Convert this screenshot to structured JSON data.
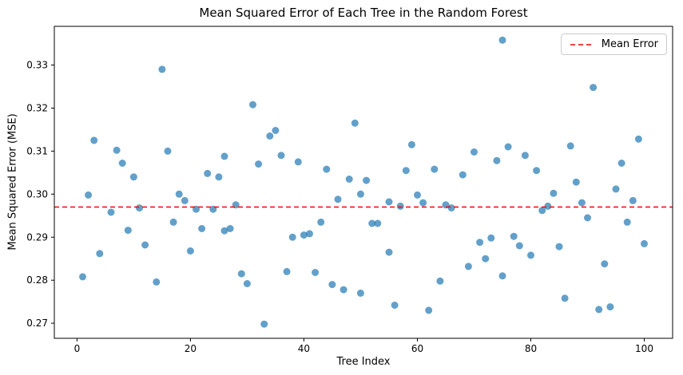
{
  "chart_data": {
    "type": "scatter",
    "title": "Mean Squared Error of Each Tree in the Random Forest",
    "xlabel": "Tree Index",
    "ylabel": "Mean Squared Error (MSE)",
    "xlim": [
      -4,
      105
    ],
    "ylim": [
      0.2665,
      0.339
    ],
    "xticks": [
      0,
      20,
      40,
      60,
      80,
      100
    ],
    "yticks": [
      0.27,
      0.28,
      0.29,
      0.3,
      0.31,
      0.32,
      0.33
    ],
    "grid": false,
    "legend": {
      "label": "Mean Error",
      "position": "upper right"
    },
    "mean_error": 0.297,
    "marker_color": "#1f77b4",
    "marker_opacity": 0.7,
    "mean_line_color": "#ff0000",
    "points": [
      [
        1,
        0.2808
      ],
      [
        2,
        0.2998
      ],
      [
        3,
        0.3125
      ],
      [
        4,
        0.2862
      ],
      [
        6,
        0.2958
      ],
      [
        7,
        0.3102
      ],
      [
        8,
        0.3072
      ],
      [
        9,
        0.2916
      ],
      [
        10,
        0.304
      ],
      [
        11,
        0.2968
      ],
      [
        12,
        0.2882
      ],
      [
        14,
        0.2796
      ],
      [
        15,
        0.329
      ],
      [
        16,
        0.31
      ],
      [
        17,
        0.2935
      ],
      [
        18,
        0.3
      ],
      [
        19,
        0.2985
      ],
      [
        20,
        0.2868
      ],
      [
        21,
        0.2965
      ],
      [
        22,
        0.292
      ],
      [
        23,
        0.3048
      ],
      [
        24,
        0.2965
      ],
      [
        25,
        0.304
      ],
      [
        26,
        0.3088
      ],
      [
        26,
        0.2915
      ],
      [
        27,
        0.292
      ],
      [
        28,
        0.2975
      ],
      [
        29,
        0.2815
      ],
      [
        30,
        0.2792
      ],
      [
        31,
        0.3208
      ],
      [
        32,
        0.307
      ],
      [
        33,
        0.2698
      ],
      [
        34,
        0.3135
      ],
      [
        35,
        0.3148
      ],
      [
        36,
        0.309
      ],
      [
        37,
        0.282
      ],
      [
        38,
        0.29
      ],
      [
        39,
        0.3075
      ],
      [
        40,
        0.2905
      ],
      [
        41,
        0.2908
      ],
      [
        42,
        0.2818
      ],
      [
        43,
        0.2935
      ],
      [
        44,
        0.3058
      ],
      [
        45,
        0.279
      ],
      [
        46,
        0.2988
      ],
      [
        47,
        0.2778
      ],
      [
        48,
        0.3035
      ],
      [
        49,
        0.3165
      ],
      [
        50,
        0.277
      ],
      [
        50,
        0.3
      ],
      [
        51,
        0.3032
      ],
      [
        52,
        0.2932
      ],
      [
        53,
        0.2932
      ],
      [
        55,
        0.2982
      ],
      [
        55,
        0.2865
      ],
      [
        56,
        0.2742
      ],
      [
        57,
        0.2972
      ],
      [
        58,
        0.3055
      ],
      [
        59,
        0.3115
      ],
      [
        60,
        0.2998
      ],
      [
        61,
        0.298
      ],
      [
        62,
        0.273
      ],
      [
        63,
        0.3058
      ],
      [
        64,
        0.2798
      ],
      [
        65,
        0.2975
      ],
      [
        66,
        0.2968
      ],
      [
        68,
        0.3045
      ],
      [
        69,
        0.2832
      ],
      [
        70,
        0.3098
      ],
      [
        71,
        0.2888
      ],
      [
        72,
        0.285
      ],
      [
        73,
        0.2898
      ],
      [
        74,
        0.3078
      ],
      [
        75,
        0.281
      ],
      [
        75,
        0.3358
      ],
      [
        76,
        0.311
      ],
      [
        77,
        0.2902
      ],
      [
        78,
        0.288
      ],
      [
        79,
        0.309
      ],
      [
        80,
        0.2858
      ],
      [
        81,
        0.3055
      ],
      [
        82,
        0.2962
      ],
      [
        83,
        0.2972
      ],
      [
        84,
        0.3002
      ],
      [
        85,
        0.2878
      ],
      [
        86,
        0.2758
      ],
      [
        87,
        0.3112
      ],
      [
        88,
        0.3028
      ],
      [
        89,
        0.298
      ],
      [
        90,
        0.2945
      ],
      [
        91,
        0.3248
      ],
      [
        92,
        0.2732
      ],
      [
        93,
        0.2838
      ],
      [
        94,
        0.2738
      ],
      [
        95,
        0.3012
      ],
      [
        96,
        0.3072
      ],
      [
        97,
        0.2935
      ],
      [
        98,
        0.2985
      ],
      [
        99,
        0.3128
      ],
      [
        100,
        0.2885
      ]
    ]
  }
}
